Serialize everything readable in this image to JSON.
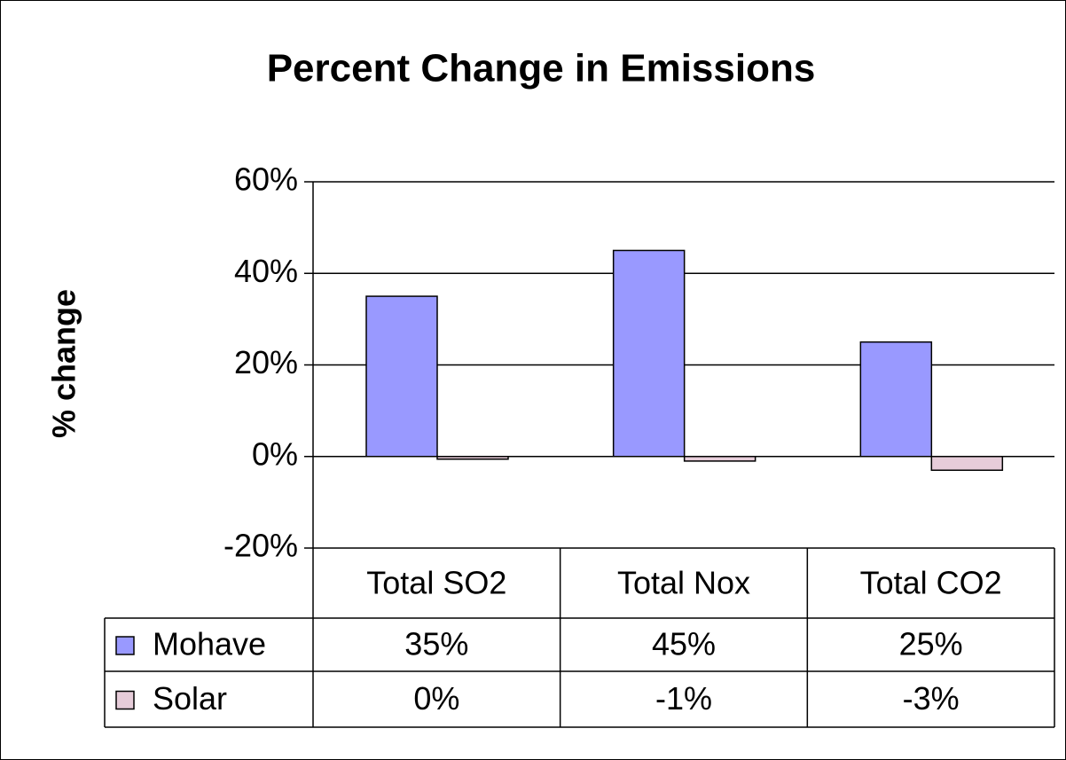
{
  "chart_data": {
    "type": "bar",
    "title": "Percent Change in Emissions",
    "y_label": "% change",
    "categories": [
      "Total SO2",
      "Total Nox",
      "Total CO2"
    ],
    "series": [
      {
        "name": "Mohave",
        "color": "#9999ff",
        "values": [
          35,
          45,
          25
        ],
        "value_labels": [
          "35%",
          "45%",
          "25%"
        ]
      },
      {
        "name": "Solar",
        "color": "#e6ccd9",
        "values": [
          0,
          -1,
          -3
        ],
        "value_labels": [
          "0%",
          "-1%",
          "-3%"
        ]
      }
    ],
    "ylim": [
      -20,
      60
    ],
    "yticks": [
      {
        "value": -20,
        "label": "-20%"
      },
      {
        "value": 0,
        "label": "0%"
      },
      {
        "value": 20,
        "label": "20%"
      },
      {
        "value": 40,
        "label": "40%"
      },
      {
        "value": 60,
        "label": "60%"
      }
    ],
    "grid": true
  }
}
